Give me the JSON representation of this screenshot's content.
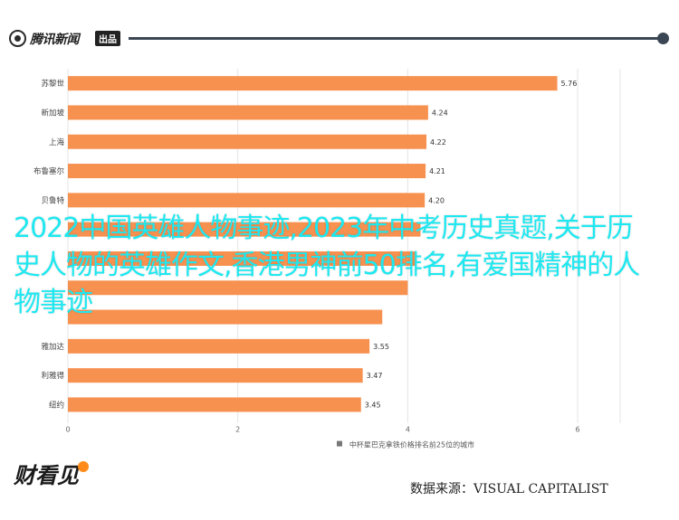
{
  "header": {
    "brand": "腾讯新闻",
    "tag": "出品",
    "accent": "#3b4654"
  },
  "overlay_text": "2022中国英雄人物事迹,2023年中考历史真题,关于历史人物的英雄作文,香港男神前50排名,有爱国精神的人物事迹",
  "footer": {
    "logo": "财看见",
    "source": "数据来源：VISUAL CAPITALIST"
  },
  "chart_data": {
    "type": "bar",
    "orientation": "horizontal",
    "categories": [
      "苏黎世",
      "新加坡",
      "上海",
      "布鲁塞尔",
      "贝鲁特",
      "",
      "",
      "",
      "",
      "雅加达",
      "利雅得",
      "纽约"
    ],
    "values": [
      5.76,
      4.24,
      4.22,
      4.21,
      4.2,
      4.15,
      4.1,
      4.0,
      3.7,
      3.55,
      3.47,
      3.45
    ],
    "value_labels": [
      "5.76",
      "4.24",
      "4.22",
      "4.21",
      "4.20",
      "",
      "",
      "",
      "",
      "3.55",
      "3.47",
      "3.45"
    ],
    "xlim": [
      0,
      6.5
    ],
    "xticks": [
      "0",
      "2",
      "4",
      "6"
    ],
    "xlabel": "中杯星巴克拿铁价格排名前25位的城市",
    "bar_color": "#f79150",
    "grid": "vertical"
  }
}
